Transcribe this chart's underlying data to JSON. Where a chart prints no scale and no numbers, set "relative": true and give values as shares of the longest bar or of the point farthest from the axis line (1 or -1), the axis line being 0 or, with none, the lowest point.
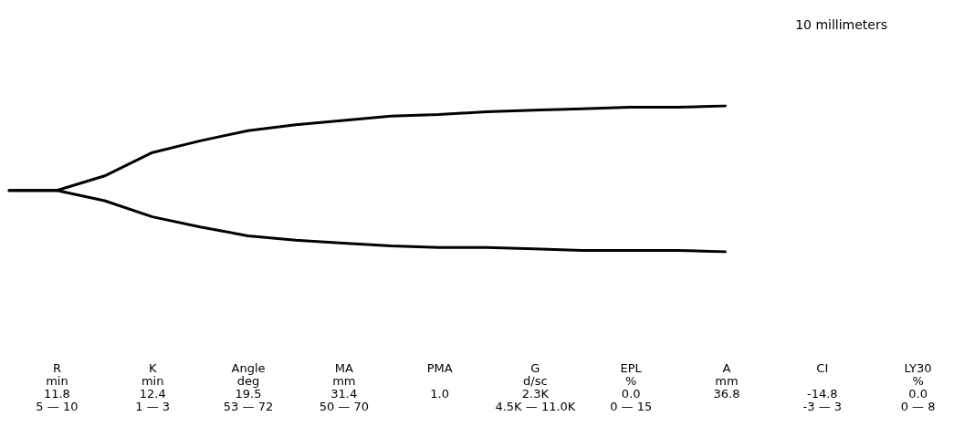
{
  "chart_data": {
    "type": "line",
    "relative": true,
    "marker": "none",
    "line_style": "solid",
    "categories": [
      null,
      null,
      null,
      null,
      null,
      null,
      null,
      null,
      null,
      null,
      null,
      null,
      null,
      null,
      null,
      null,
      null,
      null,
      null,
      null,
      null
    ],
    "series": [
      {
        "color": "#000000",
        "values": [
          0.42,
          0.42,
          0.52,
          0.68,
          0.76,
          0.83,
          0.87,
          0.9,
          0.93,
          0.94,
          0.96,
          0.97,
          0.98,
          0.99,
          0.99,
          1,
          null,
          null,
          null,
          null,
          null
        ]
      },
      {
        "color": "#000000",
        "values": [
          0.42,
          0.42,
          0.35,
          0.24,
          0.17,
          0.11,
          0.08,
          0.06,
          0.04,
          0.03,
          0.03,
          0.02,
          0.01,
          0.01,
          0.01,
          0,
          null,
          null,
          null,
          null,
          null
        ]
      }
    ],
    "annotations": [
      "10 millimeters",
      "R\nmin\n11.8\n5 — 10",
      "K\nmin\n12.4\n1 — 3",
      "Angle\ndeg\n19.5\n53 — 72",
      "MA\nmm\n31.4\n50 — 70",
      "PMA\n\n1.0",
      "G\nd/sc\n2.3K\n4.5K — 11.0K",
      "EPL\n%\n0.0\n0 — 15",
      "A\nmm\n36.8",
      "CI\n\n-14.8\n-3 — 3",
      "LY30\n%\n0.0\n0 — 8"
    ]
  }
}
